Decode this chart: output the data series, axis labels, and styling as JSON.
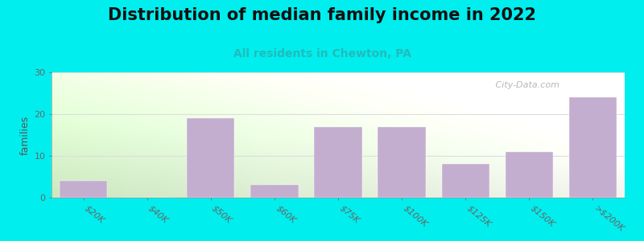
{
  "categories": [
    "$20K",
    "$40K",
    "$50K",
    "$60K",
    "$75K",
    "$100K",
    "$125K",
    "$150K",
    ">$200K"
  ],
  "values": [
    4,
    0,
    19,
    3,
    17,
    17,
    8,
    11,
    24
  ],
  "bar_color": "#c4aed0",
  "title": "Distribution of median family income in 2022",
  "subtitle": "All residents in Chewton, PA",
  "ylabel": "families",
  "ylim": [
    0,
    30
  ],
  "yticks": [
    0,
    10,
    20,
    30
  ],
  "bg_color": "#00EEEE",
  "plot_bg_topleft": "#cce8c0",
  "plot_bg_right": "#f0f0ee",
  "plot_bg_bottom": "#e8f4e0",
  "watermark": " City-Data.com",
  "title_fontsize": 15,
  "subtitle_fontsize": 10,
  "subtitle_color": "#22BBBB",
  "ylabel_fontsize": 9,
  "tick_label_fontsize": 8,
  "grid_color": "#dddddd",
  "grid_linewidth": 0.8
}
